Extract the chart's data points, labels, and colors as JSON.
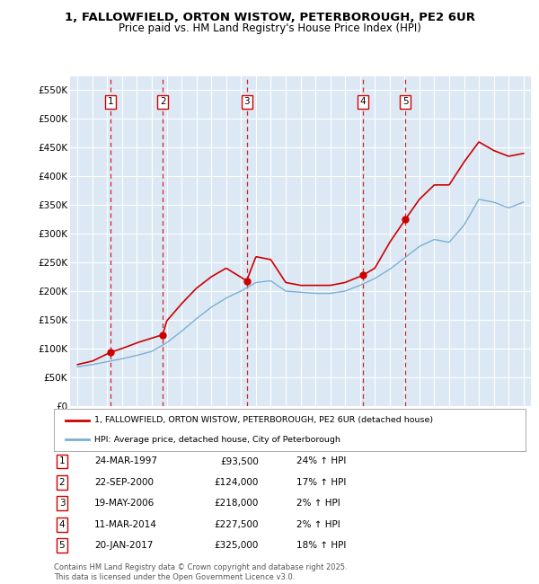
{
  "title_line1": "1, FALLOWFIELD, ORTON WISTOW, PETERBOROUGH, PE2 6UR",
  "title_line2": "Price paid vs. HM Land Registry's House Price Index (HPI)",
  "background_color": "#dce9f5",
  "sale_color": "#cc0000",
  "hpi_color": "#7ab0d4",
  "sale_dates_x": [
    1997.23,
    2000.73,
    2006.38,
    2014.19,
    2017.05
  ],
  "sale_prices_y": [
    93500,
    124000,
    218000,
    227500,
    325000
  ],
  "sale_labels": [
    "1",
    "2",
    "3",
    "4",
    "5"
  ],
  "sale_dates_str": [
    "24-MAR-1997",
    "22-SEP-2000",
    "19-MAY-2006",
    "11-MAR-2014",
    "20-JAN-2017"
  ],
  "sale_prices_str": [
    "£93,500",
    "£124,000",
    "£218,000",
    "£227,500",
    "£325,000"
  ],
  "sale_hpi_str": [
    "24% ↑ HPI",
    "17% ↑ HPI",
    "2% ↑ HPI",
    "2% ↑ HPI",
    "18% ↑ HPI"
  ],
  "legend_sale": "1, FALLOWFIELD, ORTON WISTOW, PETERBOROUGH, PE2 6UR (detached house)",
  "legend_hpi": "HPI: Average price, detached house, City of Peterborough",
  "footer": "Contains HM Land Registry data © Crown copyright and database right 2025.\nThis data is licensed under the Open Government Licence v3.0.",
  "xlim": [
    1994.5,
    2025.5
  ],
  "ylim": [
    0,
    575000
  ],
  "yticks": [
    0,
    50000,
    100000,
    150000,
    200000,
    250000,
    300000,
    350000,
    400000,
    450000,
    500000,
    550000
  ],
  "ytick_labels": [
    "£0",
    "£50K",
    "£100K",
    "£150K",
    "£200K",
    "£250K",
    "£300K",
    "£350K",
    "£400K",
    "£450K",
    "£500K",
    "£550K"
  ],
  "hpi_anchors_x": [
    1995,
    1996,
    1997,
    1998,
    1999,
    2000,
    2001,
    2002,
    2003,
    2004,
    2005,
    2006,
    2007,
    2008,
    2009,
    2010,
    2011,
    2012,
    2013,
    2014,
    2015,
    2016,
    2017,
    2018,
    2019,
    2020,
    2021,
    2022,
    2023,
    2024,
    2025
  ],
  "hpi_anchors_y": [
    68000,
    72000,
    77000,
    82000,
    88000,
    95000,
    110000,
    130000,
    152000,
    172000,
    188000,
    200000,
    215000,
    218000,
    200000,
    198000,
    196000,
    196000,
    200000,
    210000,
    222000,
    238000,
    258000,
    278000,
    290000,
    285000,
    315000,
    360000,
    355000,
    345000,
    355000
  ],
  "sale_anchors_x": [
    1995,
    1996,
    1997.23,
    1998,
    1999,
    2000.73,
    2001,
    2002,
    2003,
    2004,
    2005,
    2006.38,
    2007,
    2008,
    2009,
    2010,
    2011,
    2012,
    2013,
    2014.19,
    2015,
    2016,
    2017.05,
    2018,
    2019,
    2020,
    2021,
    2022,
    2023,
    2024,
    2025
  ],
  "sale_anchors_y": [
    72000,
    78000,
    93500,
    100000,
    110000,
    124000,
    148000,
    178000,
    205000,
    225000,
    240000,
    218000,
    260000,
    255000,
    215000,
    210000,
    210000,
    210000,
    215000,
    227500,
    240000,
    285000,
    325000,
    360000,
    385000,
    385000,
    425000,
    460000,
    445000,
    435000,
    440000
  ]
}
